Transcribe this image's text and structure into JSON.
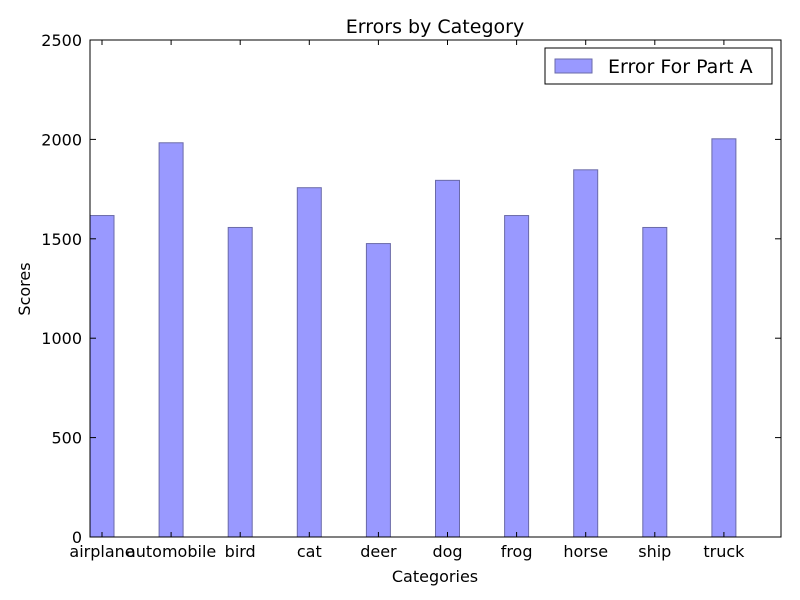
{
  "chart_data": {
    "type": "bar",
    "title": "Errors by Category",
    "xlabel": "Categories",
    "ylabel": "Scores",
    "categories": [
      "airplane",
      "automobile",
      "bird",
      "cat",
      "deer",
      "dog",
      "frog",
      "horse",
      "ship",
      "truck"
    ],
    "series": [
      {
        "name": "Error For Part A",
        "values": [
          1617,
          1983,
          1557,
          1757,
          1476,
          1794,
          1617,
          1847,
          1557,
          2003
        ]
      }
    ],
    "yticks": [
      "0",
      "500",
      "1000",
      "1500",
      "2000",
      "2500"
    ],
    "ytick_values": [
      0,
      500,
      1000,
      1500,
      2000,
      2500
    ],
    "ylim": [
      0,
      2500
    ],
    "grid": false,
    "legend_position": "top-right",
    "colors": {
      "bar_fill": "#9999ff",
      "bar_stroke": "#6a6aa8",
      "axis": "#000000",
      "background": "#ffffff"
    }
  }
}
